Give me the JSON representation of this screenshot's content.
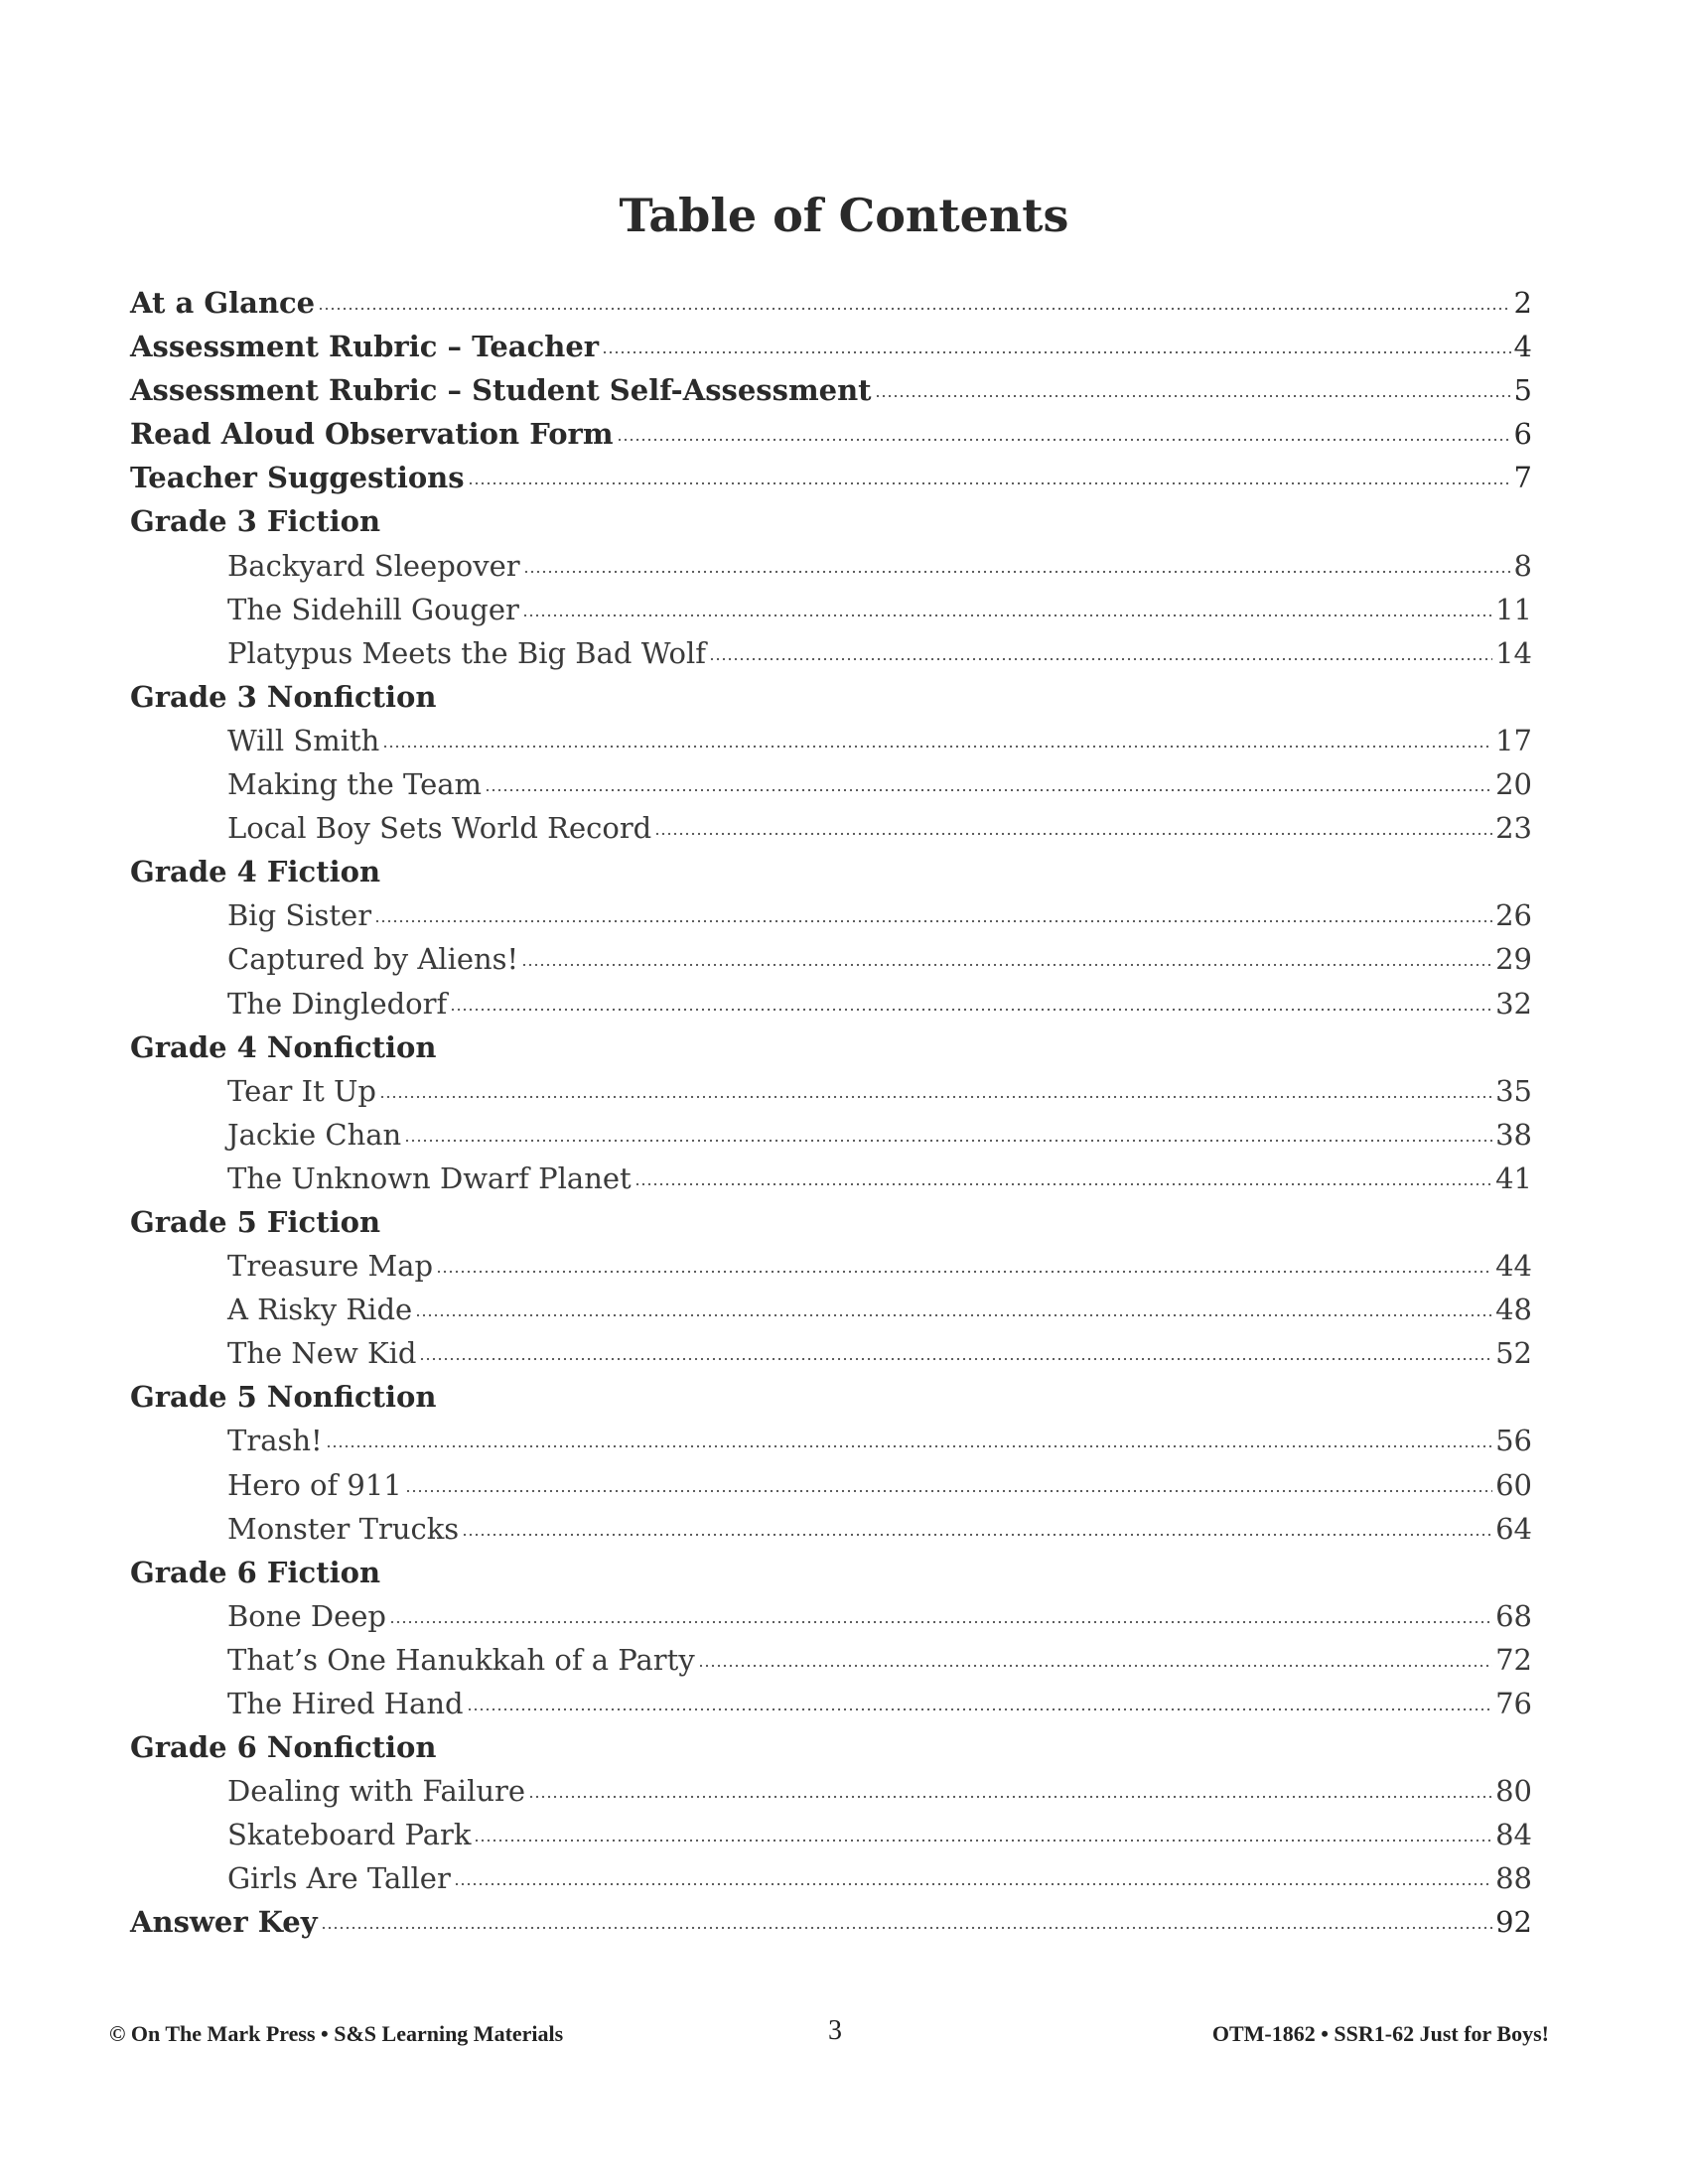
{
  "title": "Table of Contents",
  "entries": [
    {
      "type": "main",
      "label": "At a Glance",
      "page": "2"
    },
    {
      "type": "main",
      "label": "Assessment Rubric – Teacher",
      "page": "4"
    },
    {
      "type": "main",
      "label": "Assessment Rubric – Student Self-Assessment",
      "page": "5"
    },
    {
      "type": "main",
      "label": "Read Aloud Observation Form",
      "page": "6"
    },
    {
      "type": "main",
      "label": "Teacher Suggestions",
      "page": "7"
    },
    {
      "type": "head",
      "label": "Grade 3 Fiction"
    },
    {
      "type": "sub",
      "label": "Backyard Sleepover",
      "page": "8"
    },
    {
      "type": "sub",
      "label": "The Sidehill Gouger",
      "page": "11"
    },
    {
      "type": "sub",
      "label": "Platypus Meets the Big Bad Wolf",
      "page": "14"
    },
    {
      "type": "head",
      "label": "Grade 3 Nonfiction"
    },
    {
      "type": "sub",
      "label": "Will Smith",
      "page": "17"
    },
    {
      "type": "sub",
      "label": "Making the Team",
      "page": "20"
    },
    {
      "type": "sub",
      "label": "Local Boy Sets World Record",
      "page": "23"
    },
    {
      "type": "head",
      "label": "Grade 4 Fiction"
    },
    {
      "type": "sub",
      "label": "Big Sister",
      "page": "26"
    },
    {
      "type": "sub",
      "label": "Captured by Aliens!",
      "page": "29"
    },
    {
      "type": "sub",
      "label": "The Dingledorf",
      "page": "32"
    },
    {
      "type": "head",
      "label": "Grade 4 Nonfiction"
    },
    {
      "type": "sub",
      "label": "Tear It Up",
      "page": "35"
    },
    {
      "type": "sub",
      "label": "Jackie Chan",
      "page": "38"
    },
    {
      "type": "sub",
      "label": "The Unknown Dwarf Planet",
      "page": "41"
    },
    {
      "type": "head",
      "label": "Grade 5 Fiction"
    },
    {
      "type": "sub",
      "label": "Treasure Map",
      "page": "44"
    },
    {
      "type": "sub",
      "label": "A Risky Ride",
      "page": "48"
    },
    {
      "type": "sub",
      "label": "The New Kid",
      "page": "52"
    },
    {
      "type": "head",
      "label": "Grade 5 Nonfiction"
    },
    {
      "type": "sub",
      "label": "Trash!",
      "page": "56"
    },
    {
      "type": "sub",
      "label": "Hero of 911",
      "page": "60"
    },
    {
      "type": "sub",
      "label": "Monster Trucks",
      "page": "64"
    },
    {
      "type": "head",
      "label": "Grade 6 Fiction"
    },
    {
      "type": "sub",
      "label": "Bone Deep",
      "page": "68"
    },
    {
      "type": "sub",
      "label": "That’s One Hanukkah of a Party",
      "page": "72"
    },
    {
      "type": "sub",
      "label": "The Hired Hand",
      "page": "76"
    },
    {
      "type": "head",
      "label": "Grade 6 Nonfiction"
    },
    {
      "type": "sub",
      "label": "Dealing with Failure",
      "page": "80"
    },
    {
      "type": "sub",
      "label": "Skateboard Park",
      "page": "84"
    },
    {
      "type": "sub",
      "label": "Girls Are Taller",
      "page": "88"
    },
    {
      "type": "main",
      "label": "Answer Key",
      "page": "92"
    }
  ],
  "footer": {
    "left": "© On The Mark Press • S&S Learning Materials",
    "page_number": "3",
    "right": "OTM-1862 • SSR1-62 Just for Boys!"
  }
}
